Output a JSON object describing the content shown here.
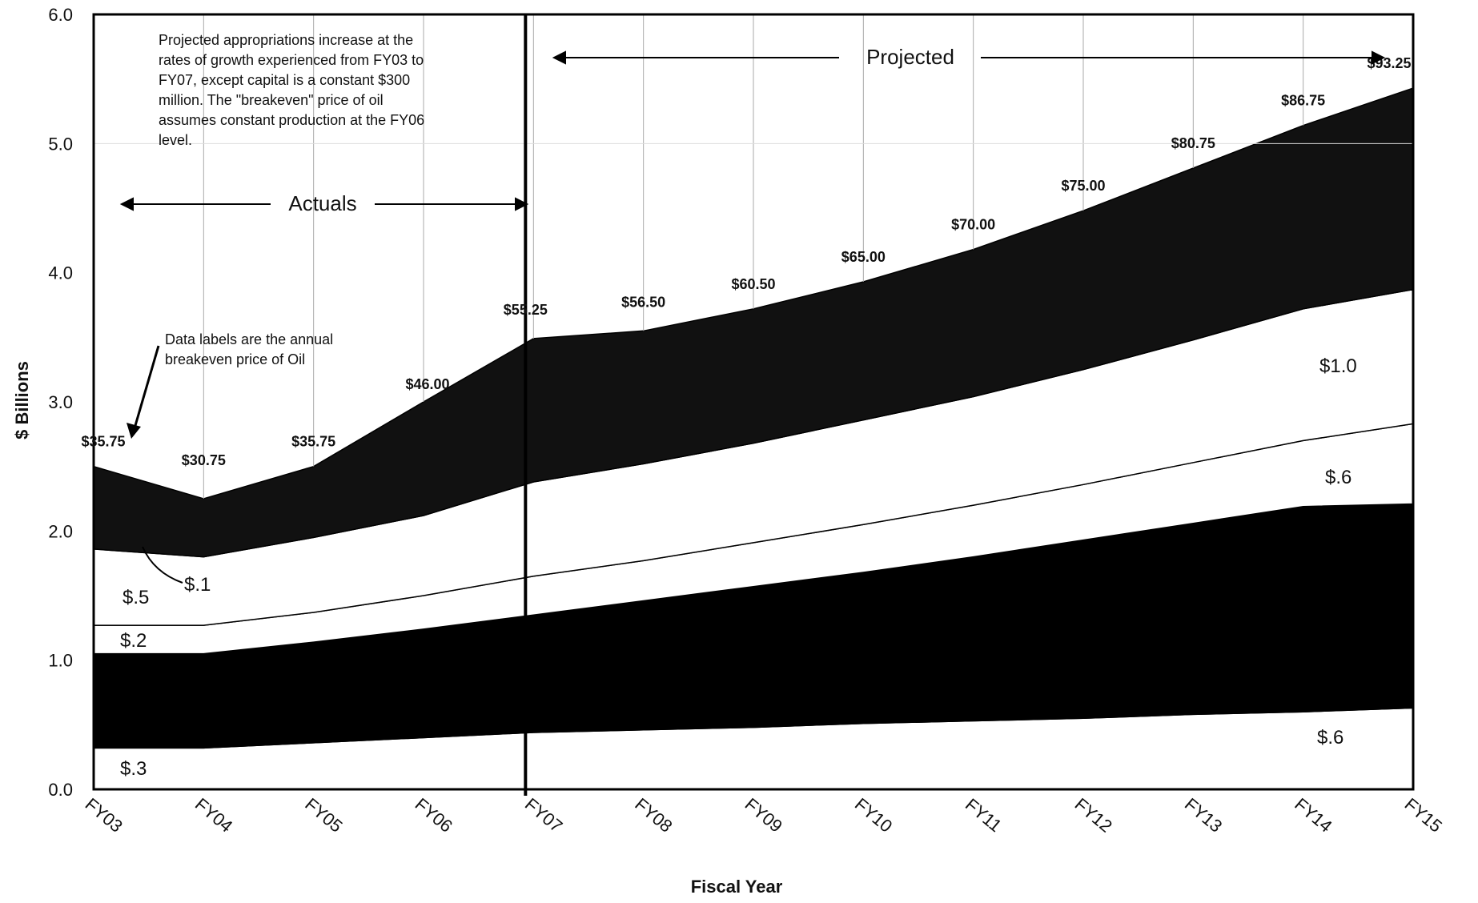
{
  "chart_data": {
    "type": "area",
    "xlabel": "Fiscal Year",
    "ylabel": "$ Billions",
    "ylim": [
      0,
      6
    ],
    "yticks": [
      "0.0",
      "1.0",
      "2.0",
      "3.0",
      "4.0",
      "5.0",
      "6.0"
    ],
    "categories": [
      "FY03",
      "FY04",
      "FY05",
      "FY06",
      "FY07",
      "FY08",
      "FY09",
      "FY10",
      "FY11",
      "FY12",
      "FY13",
      "FY14",
      "FY15"
    ],
    "grid": "vertical",
    "stack_boundaries": [
      [
        0.32,
        0.32,
        0.36,
        0.4,
        0.44,
        0.46,
        0.48,
        0.51,
        0.53,
        0.55,
        0.58,
        0.6,
        0.63
      ],
      [
        1.05,
        1.05,
        1.14,
        1.24,
        1.35,
        1.46,
        1.57,
        1.68,
        1.8,
        1.93,
        2.06,
        2.19,
        2.21
      ],
      [
        1.27,
        1.27,
        1.37,
        1.5,
        1.65,
        1.77,
        1.91,
        2.05,
        2.2,
        2.36,
        2.53,
        2.7,
        2.83
      ],
      [
        1.86,
        1.8,
        1.95,
        2.12,
        2.38,
        2.52,
        2.68,
        2.86,
        3.04,
        3.25,
        3.48,
        3.72,
        3.87
      ],
      [
        2.5,
        2.25,
        2.5,
        3.0,
        3.49,
        3.55,
        3.72,
        3.93,
        4.18,
        4.48,
        4.81,
        5.14,
        5.43
      ]
    ],
    "bands": [
      {
        "label": "$.3",
        "fill": "#ffffff"
      },
      {
        "label": "",
        "fill": "#000000"
      },
      {
        "label": "$.2",
        "fill": "#ffffff"
      },
      {
        "label": "$.5",
        "fill": "#ffffff"
      },
      {
        "label": "",
        "fill": "#111111"
      }
    ],
    "price_labels": [
      "$35.75",
      "$30.75",
      "$35.75",
      "$46.00",
      "$55.25",
      "$56.50",
      "$60.50",
      "$65.00",
      "$70.00",
      "$75.00",
      "$80.75",
      "$86.75",
      "$93.25"
    ],
    "band_labels": {
      "b03": "$.3",
      "b02": "$.2",
      "b05": "$.5",
      "b01": "$.1",
      "r06_bottom": "$.6",
      "r06_mid": "$.6",
      "r10": "$1.0"
    },
    "annotations": {
      "note_lines": [
        "Projected appropriations increase at the",
        "rates of growth experienced from FY03 to",
        "FY07, except capital is a constant $300",
        "million. The \"breakeven\" price of oil",
        "assumes constant production at the FY06",
        "level."
      ],
      "actuals": "Actuals",
      "projected": "Projected",
      "data_label_note": [
        "Data labels are the annual",
        "breakeven price of Oil"
      ]
    }
  }
}
